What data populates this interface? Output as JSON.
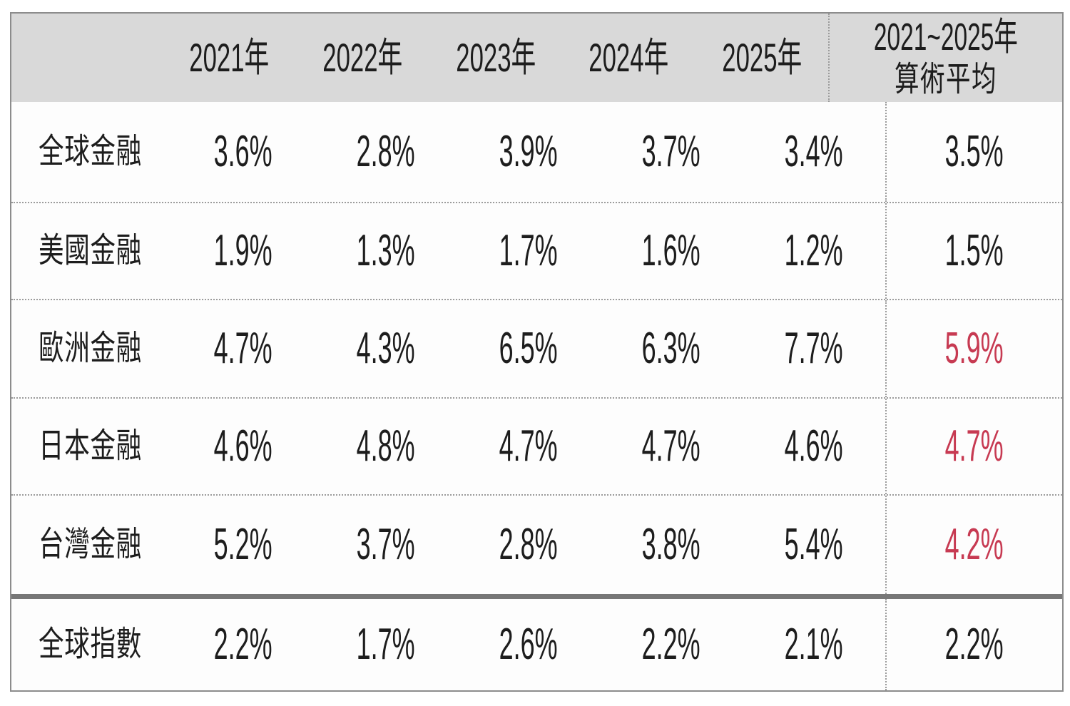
{
  "table": {
    "header": {
      "row_label_header": "",
      "years": [
        "2021年",
        "2022年",
        "2023年",
        "2024年",
        "2025年"
      ],
      "avg_line1": "2021~2025年",
      "avg_line2": "算術平均"
    },
    "rows": [
      {
        "label": "全球金融",
        "values": [
          "3.6%",
          "2.8%",
          "3.9%",
          "3.7%",
          "3.4%"
        ],
        "avg": "3.5%",
        "avg_red": false
      },
      {
        "label": "美國金融",
        "values": [
          "1.9%",
          "1.3%",
          "1.7%",
          "1.6%",
          "1.2%"
        ],
        "avg": "1.5%",
        "avg_red": false
      },
      {
        "label": "歐洲金融",
        "values": [
          "4.7%",
          "4.3%",
          "6.5%",
          "6.3%",
          "7.7%"
        ],
        "avg": "5.9%",
        "avg_red": true
      },
      {
        "label": "日本金融",
        "values": [
          "4.6%",
          "4.8%",
          "4.7%",
          "4.7%",
          "4.6%"
        ],
        "avg": "4.7%",
        "avg_red": true
      },
      {
        "label": "台灣金融",
        "values": [
          "5.2%",
          "3.7%",
          "2.8%",
          "3.8%",
          "5.4%"
        ],
        "avg": "4.2%",
        "avg_red": true
      },
      {
        "label": "全球指數",
        "values": [
          "2.2%",
          "1.7%",
          "2.6%",
          "2.2%",
          "2.1%"
        ],
        "avg": "2.2%",
        "avg_red": false
      }
    ]
  },
  "colors": {
    "highlight_red": "#c73a52",
    "header_bg": "#d9d9d9",
    "grid_line": "#9b9b9b",
    "thick_divider": "#777777",
    "text": "#1d1d1d"
  },
  "chart_data": {
    "type": "table",
    "title": "",
    "unit": "%",
    "categories": [
      "2021年",
      "2022年",
      "2023年",
      "2024年",
      "2025年",
      "2021~2025年算術平均"
    ],
    "series": [
      {
        "name": "全球金融",
        "values": [
          3.6,
          2.8,
          3.9,
          3.7,
          3.4
        ],
        "average": 3.5,
        "average_highlighted": false
      },
      {
        "name": "美國金融",
        "values": [
          1.9,
          1.3,
          1.7,
          1.6,
          1.2
        ],
        "average": 1.5,
        "average_highlighted": false
      },
      {
        "name": "歐洲金融",
        "values": [
          4.7,
          4.3,
          6.5,
          6.3,
          7.7
        ],
        "average": 5.9,
        "average_highlighted": true
      },
      {
        "name": "日本金融",
        "values": [
          4.6,
          4.8,
          4.7,
          4.7,
          4.6
        ],
        "average": 4.7,
        "average_highlighted": true
      },
      {
        "name": "台灣金融",
        "values": [
          5.2,
          3.7,
          2.8,
          3.8,
          5.4
        ],
        "average": 4.2,
        "average_highlighted": true
      },
      {
        "name": "全球指數",
        "values": [
          2.2,
          1.7,
          2.6,
          2.2,
          2.1
        ],
        "average": 2.2,
        "average_highlighted": false
      }
    ],
    "layout": {
      "grid": "dotted-row-separators",
      "average_column_separator": "dotted-vertical-line",
      "last_row_separator": "thick-gray-bar",
      "header_background": "#d9d9d9"
    }
  }
}
